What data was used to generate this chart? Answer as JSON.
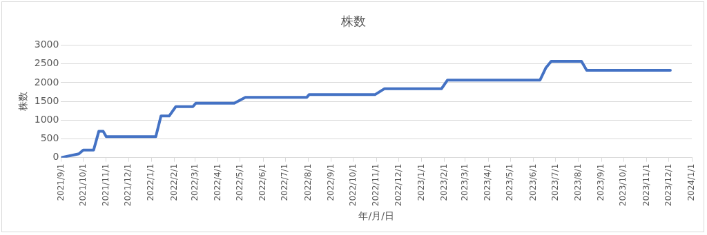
{
  "chart_data": {
    "type": "line",
    "title": "株数",
    "xlabel": "年/月/日",
    "ylabel": "株数",
    "x": [
      "2021-09-01",
      "2021-09-25",
      "2021-10-01",
      "2021-10-15",
      "2021-10-22",
      "2021-10-28",
      "2021-11-01",
      "2022-01-07",
      "2022-01-14",
      "2022-01-25",
      "2022-02-03",
      "2022-02-26",
      "2022-03-02",
      "2022-04-23",
      "2022-05-08",
      "2022-07-30",
      "2022-08-02",
      "2022-10-30",
      "2022-11-12",
      "2023-01-28",
      "2023-02-05",
      "2023-06-10",
      "2023-06-18",
      "2023-06-25",
      "2023-08-05",
      "2023-08-12",
      "2023-12-03"
    ],
    "series": [
      {
        "color": "#4472c4",
        "values": [
          0,
          100,
          200,
          200,
          700,
          700,
          560,
          560,
          1110,
          1110,
          1360,
          1360,
          1450,
          1450,
          1610,
          1610,
          1680,
          1680,
          1840,
          1840,
          2070,
          2070,
          2400,
          2570,
          2570,
          2330,
          2330
        ]
      }
    ],
    "xlim": [
      "2021-09-01",
      "2024-01-01"
    ],
    "xticks": [
      {
        "value": "2021-09-01",
        "label": "2021/9/1"
      },
      {
        "value": "2021-10-01",
        "label": "2021/10/1"
      },
      {
        "value": "2021-11-01",
        "label": "2021/11/1"
      },
      {
        "value": "2021-12-01",
        "label": "2021/12/1"
      },
      {
        "value": "2022-01-01",
        "label": "2022/1/1"
      },
      {
        "value": "2022-02-01",
        "label": "2022/2/1"
      },
      {
        "value": "2022-03-01",
        "label": "2022/3/1"
      },
      {
        "value": "2022-04-01",
        "label": "2022/4/1"
      },
      {
        "value": "2022-05-01",
        "label": "2022/5/1"
      },
      {
        "value": "2022-06-01",
        "label": "2022/6/1"
      },
      {
        "value": "2022-07-01",
        "label": "2022/7/1"
      },
      {
        "value": "2022-08-01",
        "label": "2022/8/1"
      },
      {
        "value": "2022-09-01",
        "label": "2022/9/1"
      },
      {
        "value": "2022-10-01",
        "label": "2022/10/1"
      },
      {
        "value": "2022-11-01",
        "label": "2022/11/1"
      },
      {
        "value": "2022-12-01",
        "label": "2022/12/1"
      },
      {
        "value": "2023-01-01",
        "label": "2023/1/1"
      },
      {
        "value": "2023-02-01",
        "label": "2023/2/1"
      },
      {
        "value": "2023-03-01",
        "label": "2023/3/1"
      },
      {
        "value": "2023-04-01",
        "label": "2023/4/1"
      },
      {
        "value": "2023-05-01",
        "label": "2023/5/1"
      },
      {
        "value": "2023-06-01",
        "label": "2023/6/1"
      },
      {
        "value": "2023-07-01",
        "label": "2023/7/1"
      },
      {
        "value": "2023-08-01",
        "label": "2023/8/1"
      },
      {
        "value": "2023-09-01",
        "label": "2023/9/1"
      },
      {
        "value": "2023-10-01",
        "label": "2023/10/1"
      },
      {
        "value": "2023-11-01",
        "label": "2023/11/1"
      },
      {
        "value": "2023-12-01",
        "label": "2023/12/1"
      },
      {
        "value": "2024-01-01",
        "label": "2024/1/1"
      }
    ],
    "ylim": [
      0,
      3000
    ],
    "yticks": [
      0,
      500,
      1000,
      1500,
      2000,
      2500,
      3000
    ],
    "grid": "y",
    "legend": false,
    "marker": "none",
    "line_style": "solid"
  }
}
